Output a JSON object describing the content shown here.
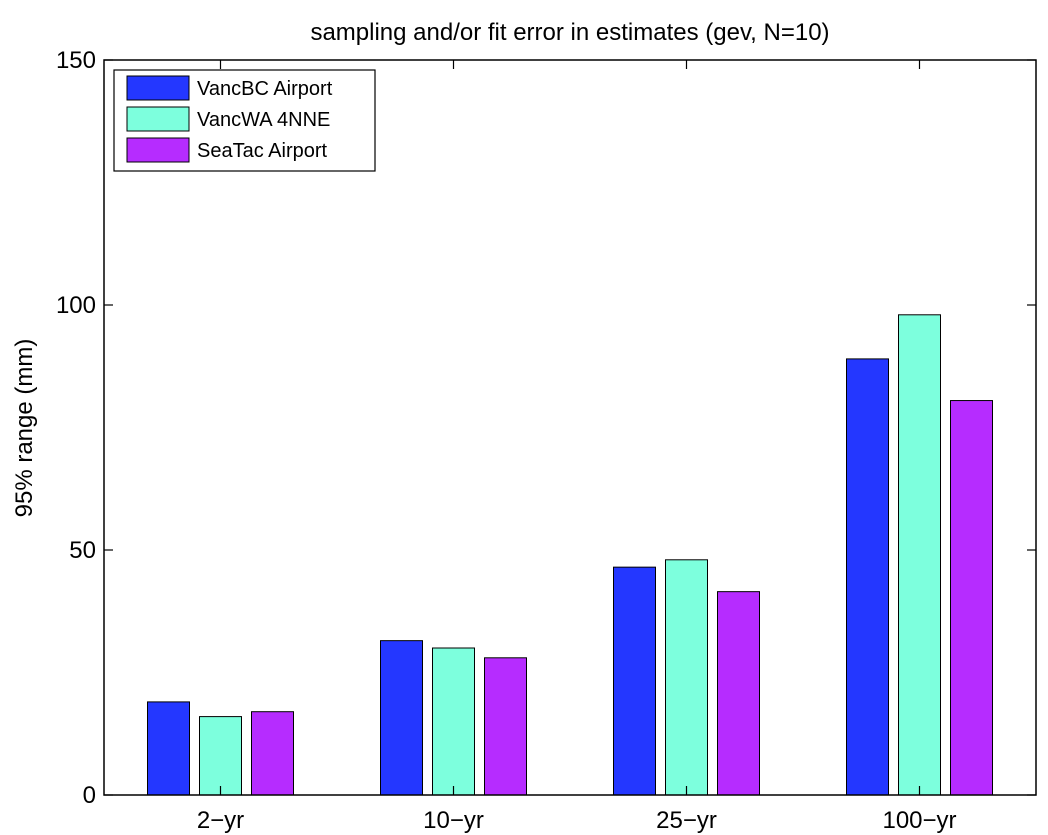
{
  "chart_data": {
    "type": "bar",
    "title": "sampling and/or fit error in estimates (gev, N=10)",
    "xlabel": "",
    "ylabel": "95% range (mm)",
    "categories": [
      "2−yr",
      "10−yr",
      "25−yr",
      "100−yr"
    ],
    "ylim": [
      0,
      150
    ],
    "yticks": [
      0,
      50,
      100,
      150
    ],
    "grid": false,
    "legend_position": "top-left",
    "series": [
      {
        "name": "VancBC Airport",
        "color": "#2437ff",
        "values": [
          19,
          31.5,
          46.5,
          89
        ]
      },
      {
        "name": "VancWA 4NNE",
        "color": "#7dffdd",
        "values": [
          16,
          30,
          48,
          98
        ]
      },
      {
        "name": "SeaTac Airport",
        "color": "#b62cff",
        "values": [
          17,
          28,
          41.5,
          80.5
        ]
      }
    ]
  }
}
